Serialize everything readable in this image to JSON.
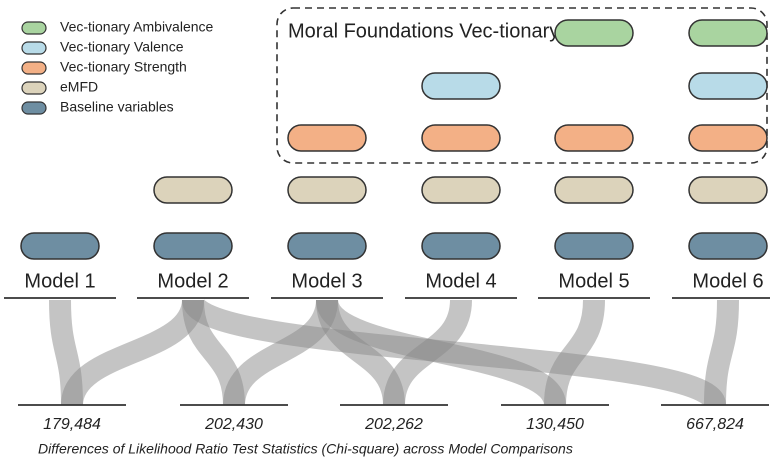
{
  "legend": [
    {
      "label": "Vec-tionary Ambivalence",
      "color": "#a9d4a0"
    },
    {
      "label": "Vec-tionary Valence",
      "color": "#b8dbe8"
    },
    {
      "label": "Vec-tionary Strength",
      "color": "#f3b086"
    },
    {
      "label": "eMFD",
      "color": "#dcd3bb"
    },
    {
      "label": "Baseline variables",
      "color": "#6e8ea2"
    }
  ],
  "box_title": "Moral Foundations Vec-tionary",
  "models": [
    "Model 1",
    "Model 2",
    "Model 3",
    "Model 4",
    "Model 5",
    "Model 6"
  ],
  "comparisons": [
    "179,484",
    "202,430",
    "202,262",
    "130,450",
    "667,824"
  ],
  "caption": "Differences of Likelihood Ratio Test Statistics (Chi-square) across Model Comparisons"
}
